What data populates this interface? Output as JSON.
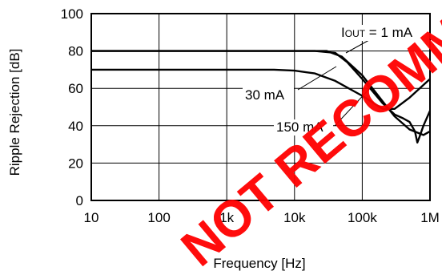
{
  "chart_data": {
    "type": "line",
    "xlabel": "Frequency [Hz]",
    "ylabel": "Ripple Rejection [dB]",
    "x_scale": "log",
    "xlim": [
      10,
      1000000
    ],
    "ylim": [
      0,
      100
    ],
    "grid": true,
    "x_ticks": [
      {
        "value": 10,
        "label": "10"
      },
      {
        "value": 100,
        "label": "100"
      },
      {
        "value": 1000,
        "label": "1k"
      },
      {
        "value": 10000,
        "label": "10k"
      },
      {
        "value": 100000,
        "label": "100k"
      },
      {
        "value": 1000000,
        "label": "1M"
      }
    ],
    "y_ticks": [
      0,
      20,
      40,
      60,
      80,
      100
    ],
    "series": [
      {
        "name": "IOUT = 1 mA",
        "x": [
          10,
          10000,
          30000,
          50000,
          100000,
          200000,
          300000,
          500000,
          800000,
          1000000
        ],
        "y": [
          80,
          80,
          80,
          77,
          67,
          53,
          45,
          38,
          35,
          37
        ]
      },
      {
        "name": "30 mA",
        "x": [
          10,
          5000,
          10000,
          20000,
          40000,
          100000,
          200000,
          300000,
          500000,
          1000000
        ],
        "y": [
          70,
          70,
          69.5,
          68,
          64,
          56,
          49,
          49,
          55,
          65
        ]
      },
      {
        "name": "150 mA",
        "x": [
          10,
          20000,
          40000,
          60000,
          100000,
          200000,
          300000,
          400000,
          500000,
          600000,
          650000,
          700000,
          800000,
          1000000
        ],
        "y": [
          80,
          80,
          79,
          74,
          65,
          52,
          46,
          44,
          42,
          37,
          31,
          34,
          40,
          48
        ]
      }
    ],
    "annotations": [
      {
        "main": "I",
        "sub": "OUT",
        "rest": " = 1 mA"
      },
      {
        "main": "30 mA"
      },
      {
        "main": "150 mA"
      }
    ]
  },
  "watermark": "NOT RECOMMENDED"
}
